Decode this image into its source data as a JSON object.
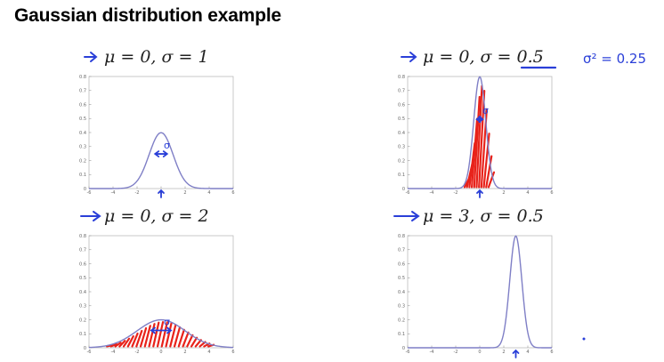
{
  "slide": {
    "title": "Gaussian distribution example",
    "variance_note": "σ² = 0.25"
  },
  "colors": {
    "curve": "#7f7fc6",
    "axis": "#555555",
    "annotation_blue": "#2a3fd8",
    "hatch_red": "#e8221a"
  },
  "chart_data": [
    {
      "type": "line",
      "caption": "μ = 0, σ = 1",
      "mu": 0,
      "sigma": 1,
      "xlim": [
        -6,
        6
      ],
      "ylim": [
        0,
        0.8
      ],
      "x_ticks": [
        -6,
        -4,
        -2,
        0,
        2,
        4,
        6
      ],
      "y_ticks": [
        0,
        0.1,
        0.2,
        0.3,
        0.4,
        0.5,
        0.6,
        0.7,
        0.8
      ],
      "annotation": "σ",
      "hatched": false,
      "grid": false
    },
    {
      "type": "line",
      "caption": "μ = 0, σ = 0.5",
      "mu": 0,
      "sigma": 0.5,
      "xlim": [
        -6,
        6
      ],
      "ylim": [
        0,
        0.8
      ],
      "x_ticks": [
        -6,
        -4,
        -2,
        0,
        2,
        4,
        6
      ],
      "y_ticks": [
        0,
        0.1,
        0.2,
        0.3,
        0.4,
        0.5,
        0.6,
        0.7,
        0.8
      ],
      "annotation": "σ",
      "hatched": true,
      "grid": false
    },
    {
      "type": "line",
      "caption": "μ = 0, σ = 2",
      "mu": 0,
      "sigma": 2,
      "xlim": [
        -6,
        6
      ],
      "ylim": [
        0,
        0.8
      ],
      "x_ticks": [
        -6,
        -4,
        -2,
        0,
        2,
        4,
        6
      ],
      "y_ticks": [
        0,
        0.1,
        0.2,
        0.3,
        0.4,
        0.5,
        0.6,
        0.7,
        0.8
      ],
      "annotation": "σ",
      "hatched": true,
      "grid": false
    },
    {
      "type": "line",
      "caption": "μ = 3, σ = 0.5",
      "mu": 3,
      "sigma": 0.5,
      "xlim": [
        -6,
        6
      ],
      "ylim": [
        0,
        0.8
      ],
      "x_ticks": [
        -6,
        -4,
        -2,
        0,
        2,
        4,
        6
      ],
      "y_ticks": [
        0,
        0.1,
        0.2,
        0.3,
        0.4,
        0.5,
        0.6,
        0.7,
        0.8
      ],
      "annotation": "",
      "hatched": false,
      "grid": false
    }
  ]
}
